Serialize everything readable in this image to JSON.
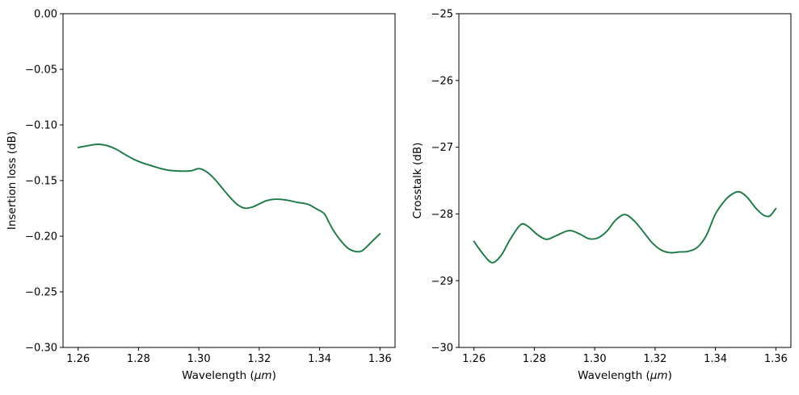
{
  "figure": {
    "background": "#ffffff",
    "axis_color": "#000000",
    "text_color": "#000000",
    "line_color": "#1a7a43"
  },
  "chart_data": [
    {
      "type": "line",
      "name": "insertion-loss-chart",
      "title": "",
      "xlabel": {
        "pre": "Wavelength (",
        "italic": "μm",
        "post": ")"
      },
      "ylabel": "Insertion loss (dB)",
      "xlim": [
        1.255,
        1.365
      ],
      "ylim": [
        -0.3,
        0.0
      ],
      "grid": false,
      "legend": null,
      "xticks": {
        "values": [
          1.26,
          1.28,
          1.3,
          1.32,
          1.34,
          1.36
        ],
        "labels": [
          "1.26",
          "1.28",
          "1.30",
          "1.32",
          "1.34",
          "1.36"
        ]
      },
      "yticks": {
        "values": [
          0.0,
          -0.05,
          -0.1,
          -0.15,
          -0.2,
          -0.25,
          -0.3
        ],
        "labels": [
          "0.00",
          "−0.05",
          "−0.10",
          "−0.15",
          "−0.20",
          "−0.25",
          "−0.30"
        ]
      },
      "series": [
        {
          "name": "insertion_loss",
          "color": "#1a7a43",
          "x": [
            1.26,
            1.2635,
            1.2665,
            1.2695,
            1.2725,
            1.2755,
            1.2785,
            1.2815,
            1.2845,
            1.2875,
            1.29,
            1.2925,
            1.295,
            1.2975,
            1.3,
            1.3025,
            1.305,
            1.3075,
            1.31,
            1.3125,
            1.315,
            1.3175,
            1.32,
            1.3225,
            1.3255,
            1.329,
            1.3325,
            1.336,
            1.339,
            1.3415,
            1.343,
            1.3445,
            1.347,
            1.3495,
            1.352,
            1.354,
            1.356,
            1.358,
            1.36
          ],
          "y": [
            -0.1203,
            -0.1185,
            -0.1174,
            -0.1185,
            -0.1217,
            -0.1265,
            -0.131,
            -0.1343,
            -0.1368,
            -0.1393,
            -0.1407,
            -0.1413,
            -0.1415,
            -0.1412,
            -0.1393,
            -0.142,
            -0.148,
            -0.156,
            -0.164,
            -0.171,
            -0.1747,
            -0.174,
            -0.171,
            -0.168,
            -0.1667,
            -0.1675,
            -0.1695,
            -0.1712,
            -0.1755,
            -0.1797,
            -0.187,
            -0.1945,
            -0.204,
            -0.211,
            -0.2138,
            -0.2132,
            -0.2085,
            -0.203,
            -0.1978
          ]
        }
      ]
    },
    {
      "type": "line",
      "name": "crosstalk-chart",
      "title": "",
      "xlabel": {
        "pre": "Wavelength (",
        "italic": "μm",
        "post": ")"
      },
      "ylabel": "Crosstalk (dB)",
      "xlim": [
        1.255,
        1.365
      ],
      "ylim": [
        -30,
        -25
      ],
      "grid": false,
      "legend": null,
      "xticks": {
        "values": [
          1.26,
          1.28,
          1.3,
          1.32,
          1.34,
          1.36
        ],
        "labels": [
          "1.26",
          "1.28",
          "1.30",
          "1.32",
          "1.34",
          "1.36"
        ]
      },
      "yticks": {
        "values": [
          -25,
          -26,
          -27,
          -28,
          -29,
          -30
        ],
        "labels": [
          "−25",
          "−26",
          "−27",
          "−28",
          "−29",
          "−30"
        ]
      },
      "series": [
        {
          "name": "crosstalk",
          "color": "#1a7a43",
          "x": [
            1.26,
            1.263,
            1.266,
            1.269,
            1.272,
            1.2755,
            1.278,
            1.281,
            1.284,
            1.287,
            1.2915,
            1.295,
            1.298,
            1.301,
            1.304,
            1.307,
            1.31,
            1.313,
            1.316,
            1.319,
            1.322,
            1.325,
            1.328,
            1.331,
            1.334,
            1.337,
            1.34,
            1.3435,
            1.346,
            1.348,
            1.3505,
            1.3535,
            1.356,
            1.358,
            1.36
          ],
          "y": [
            -28.41,
            -28.6,
            -28.73,
            -28.62,
            -28.38,
            -28.16,
            -28.19,
            -28.31,
            -28.38,
            -28.33,
            -28.25,
            -28.3,
            -28.37,
            -28.36,
            -28.26,
            -28.09,
            -28.01,
            -28.1,
            -28.26,
            -28.43,
            -28.54,
            -28.58,
            -28.57,
            -28.56,
            -28.5,
            -28.32,
            -28.0,
            -27.78,
            -27.69,
            -27.67,
            -27.75,
            -27.92,
            -28.02,
            -28.03,
            -27.92
          ]
        }
      ]
    }
  ]
}
